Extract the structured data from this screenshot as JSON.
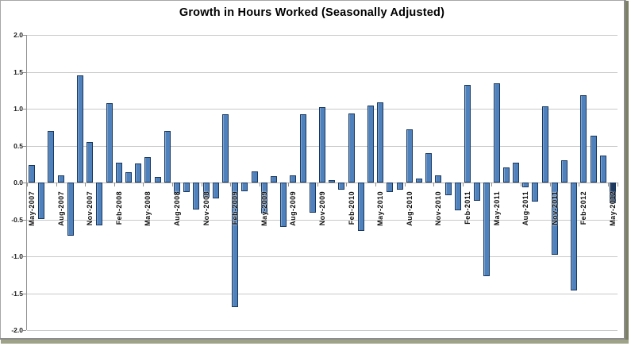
{
  "image_frame": {
    "border_color": "#a6a6a6",
    "shadow_color": "#7c8066"
  },
  "chart_data": {
    "type": "bar",
    "title": "Growth in Hours Worked (Seasonally Adjusted)",
    "xlabel": "",
    "ylabel": "",
    "ylim": [
      -2.0,
      2.0
    ],
    "ytick_step": 0.5,
    "ytick_labels": [
      "2.0",
      "1.5",
      "1.0",
      "0.5",
      "0.0",
      "-0.5",
      "-1.0",
      "-1.5",
      "-2.0"
    ],
    "xtick_label_every": 3,
    "grid": true,
    "legend": "none",
    "bar_color": "#4f81bd",
    "bar_border_color": "#17375e",
    "highlighted_category": "May-2012",
    "highlighted_bar_color": "#1f3a5f",
    "categories": [
      "May-2007",
      "Jun-2007",
      "Jul-2007",
      "Aug-2007",
      "Sep-2007",
      "Oct-2007",
      "Nov-2007",
      "Dec-2007",
      "Jan-2008",
      "Feb-2008",
      "Mar-2008",
      "Apr-2008",
      "May-2008",
      "Jun-2008",
      "Jul-2008",
      "Aug-2008",
      "Sep-2008",
      "Oct-2008",
      "Nov-2008",
      "Dec-2008",
      "Jan-2009",
      "Feb-2009",
      "Mar-2009",
      "Apr-2009",
      "May-2009",
      "Jun-2009",
      "Jul-2009",
      "Aug-2009",
      "Sep-2009",
      "Oct-2009",
      "Nov-2009",
      "Dec-2009",
      "Jan-2010",
      "Feb-2010",
      "Mar-2010",
      "Apr-2010",
      "May-2010",
      "Jun-2010",
      "Jul-2010",
      "Aug-2010",
      "Sep-2010",
      "Oct-2010",
      "Nov-2010",
      "Dec-2010",
      "Jan-2011",
      "Feb-2011",
      "Mar-2011",
      "Apr-2011",
      "May-2011",
      "Jun-2011",
      "Jul-2011",
      "Aug-2011",
      "Sep-2011",
      "Oct-2011",
      "Nov-2011",
      "Dec-2011",
      "Jan-2012",
      "Feb-2012",
      "Mar-2012",
      "Apr-2012",
      "May-2012"
    ],
    "values": [
      0.24,
      -0.49,
      0.7,
      0.1,
      -0.72,
      1.45,
      0.55,
      -0.58,
      1.08,
      0.27,
      0.14,
      0.26,
      0.34,
      0.07,
      0.7,
      -0.16,
      -0.13,
      -0.37,
      -0.2,
      -0.21,
      0.92,
      -1.69,
      -0.12,
      0.15,
      -0.42,
      0.09,
      -0.6,
      0.1,
      0.93,
      -0.41,
      1.02,
      0.03,
      -0.1,
      0.94,
      -0.66,
      1.04,
      1.09,
      -0.13,
      -0.1,
      0.72,
      0.05,
      0.4,
      0.1,
      -0.17,
      -0.38,
      1.32,
      -0.25,
      -1.27,
      1.34,
      0.2,
      0.27,
      -0.06,
      -0.26,
      1.03,
      -0.98,
      0.3,
      -1.46,
      1.18,
      0.63,
      0.37,
      -0.28
    ]
  }
}
